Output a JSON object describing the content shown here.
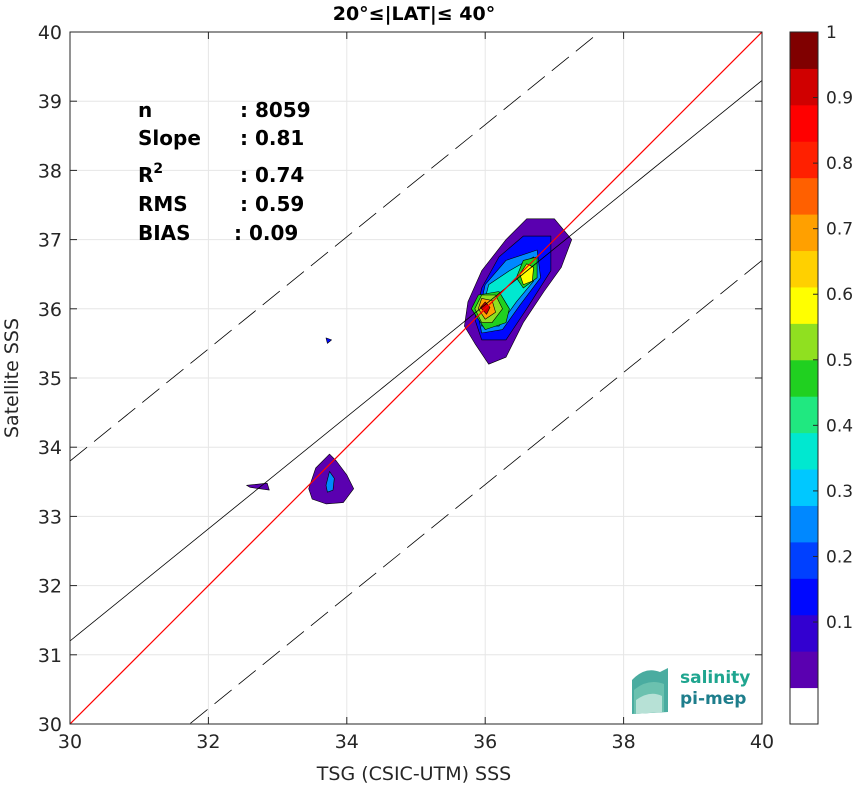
{
  "chart_data": {
    "type": "heatmap",
    "title": "20°≤|LAT|≤ 40°",
    "xlabel": "TSG (CSIC-UTM) SSS",
    "ylabel": "Satellite SSS",
    "xlim": [
      30,
      40
    ],
    "ylim": [
      30,
      40
    ],
    "xticks": [
      "30",
      "32",
      "34",
      "36",
      "38",
      "40"
    ],
    "yticks": [
      "30",
      "31",
      "32",
      "33",
      "34",
      "35",
      "36",
      "37",
      "38",
      "39",
      "40"
    ],
    "grid": true,
    "stats": [
      {
        "label": "n",
        "value": ": 8059"
      },
      {
        "label": "Slope",
        "value": ": 0.81"
      },
      {
        "label": "R",
        "sup": "2",
        "value": ": 0.74"
      },
      {
        "label": "RMS",
        "value": ": 0.59"
      },
      {
        "label": "BIAS",
        "value": ": 0.09"
      }
    ],
    "lines": {
      "identity": {
        "slope": 1.0,
        "intercept": 0.0,
        "color": "#ff0000"
      },
      "fit": {
        "slope": 0.81,
        "intercept": 6.9,
        "color": "#000000"
      },
      "rms_band": {
        "offset": 2.6,
        "style": "dashed",
        "color": "#000000"
      }
    },
    "contour_regions": [
      {
        "name": "main-cluster",
        "level": 0.05,
        "points": [
          [
            35.7,
            35.75
          ],
          [
            35.75,
            36.1
          ],
          [
            35.95,
            36.55
          ],
          [
            36.3,
            37.0
          ],
          [
            36.6,
            37.3
          ],
          [
            37.0,
            37.3
          ],
          [
            37.25,
            37.0
          ],
          [
            37.1,
            36.6
          ],
          [
            36.85,
            36.25
          ],
          [
            36.55,
            35.8
          ],
          [
            36.3,
            35.3
          ],
          [
            36.05,
            35.2
          ],
          [
            35.85,
            35.5
          ]
        ]
      },
      {
        "name": "main-cluster",
        "level": 0.15,
        "points": [
          [
            35.85,
            35.85
          ],
          [
            35.95,
            36.3
          ],
          [
            36.2,
            36.75
          ],
          [
            36.55,
            37.05
          ],
          [
            36.95,
            37.05
          ],
          [
            36.95,
            36.55
          ],
          [
            36.6,
            36.0
          ],
          [
            36.3,
            35.55
          ],
          [
            35.95,
            35.55
          ]
        ]
      },
      {
        "name": "main-cluster",
        "level": 0.25,
        "points": [
          [
            35.9,
            35.9
          ],
          [
            36.0,
            36.35
          ],
          [
            36.3,
            36.7
          ],
          [
            36.75,
            36.85
          ],
          [
            36.8,
            36.45
          ],
          [
            36.5,
            36.05
          ],
          [
            36.25,
            35.7
          ],
          [
            35.95,
            35.65
          ]
        ]
      },
      {
        "name": "main-cluster",
        "level": 0.35,
        "points": [
          [
            35.95,
            35.95
          ],
          [
            36.05,
            36.35
          ],
          [
            36.35,
            36.55
          ],
          [
            36.7,
            36.75
          ],
          [
            36.7,
            36.4
          ],
          [
            36.45,
            36.1
          ],
          [
            36.2,
            35.75
          ],
          [
            35.95,
            35.75
          ]
        ]
      },
      {
        "name": "main-cluster",
        "level": 0.45,
        "points": [
          [
            35.8,
            36.0
          ],
          [
            35.9,
            36.2
          ],
          [
            36.2,
            36.25
          ],
          [
            36.35,
            36.0
          ],
          [
            36.3,
            35.8
          ],
          [
            36.0,
            35.7
          ]
        ]
      },
      {
        "name": "secondary-peak",
        "level": 0.45,
        "points": [
          [
            36.45,
            36.45
          ],
          [
            36.55,
            36.7
          ],
          [
            36.75,
            36.75
          ],
          [
            36.75,
            36.45
          ],
          [
            36.55,
            36.3
          ]
        ]
      },
      {
        "name": "main-cluster",
        "level": 0.55,
        "points": [
          [
            35.85,
            36.0
          ],
          [
            35.95,
            36.2
          ],
          [
            36.15,
            36.2
          ],
          [
            36.25,
            36.0
          ],
          [
            36.1,
            35.8
          ],
          [
            35.95,
            35.8
          ]
        ]
      },
      {
        "name": "secondary-peak",
        "level": 0.6,
        "points": [
          [
            36.5,
            36.5
          ],
          [
            36.6,
            36.65
          ],
          [
            36.7,
            36.6
          ],
          [
            36.68,
            36.4
          ],
          [
            36.55,
            36.35
          ]
        ]
      },
      {
        "name": "main-cluster",
        "level": 0.7,
        "points": [
          [
            35.9,
            36.0
          ],
          [
            35.95,
            36.15
          ],
          [
            36.1,
            36.12
          ],
          [
            36.15,
            35.95
          ],
          [
            36.0,
            35.85
          ]
        ]
      },
      {
        "name": "main-cluster",
        "level": 0.9,
        "points": [
          [
            35.93,
            36.02
          ],
          [
            36.0,
            36.1
          ],
          [
            36.07,
            36.02
          ],
          [
            36.02,
            35.92
          ]
        ]
      },
      {
        "name": "blob-34",
        "level": 0.05,
        "points": [
          [
            33.45,
            33.4
          ],
          [
            33.55,
            33.7
          ],
          [
            33.75,
            33.9
          ],
          [
            33.85,
            33.8
          ],
          [
            34.0,
            33.6
          ],
          [
            34.1,
            33.4
          ],
          [
            33.95,
            33.2
          ],
          [
            33.7,
            33.18
          ],
          [
            33.5,
            33.25
          ]
        ]
      },
      {
        "name": "blob-34",
        "level": 0.25,
        "points": [
          [
            33.7,
            33.45
          ],
          [
            33.75,
            33.65
          ],
          [
            33.82,
            33.55
          ],
          [
            33.8,
            33.38
          ],
          [
            33.72,
            33.35
          ]
        ]
      },
      {
        "name": "speck",
        "level": 0.05,
        "points": [
          [
            32.55,
            33.45
          ],
          [
            32.85,
            33.48
          ],
          [
            32.88,
            33.38
          ],
          [
            32.6,
            33.42
          ]
        ]
      },
      {
        "name": "speck",
        "level": 0.15,
        "points": [
          [
            33.7,
            35.58
          ],
          [
            33.78,
            35.55
          ],
          [
            33.72,
            35.5
          ]
        ]
      }
    ],
    "colorbar": {
      "ticks": [
        "0.1",
        "0.2",
        "0.3",
        "0.4",
        "0.5",
        "0.6",
        "0.7",
        "0.8",
        "0.9",
        "1"
      ],
      "colors": [
        "#ffffff",
        "#5a00b0",
        "#3300d0",
        "#0008ff",
        "#0040ff",
        "#0088ff",
        "#00c8ff",
        "#00e8d0",
        "#20e880",
        "#20d020",
        "#90e020",
        "#ffff00",
        "#ffd000",
        "#ffa000",
        "#ff6000",
        "#ff2000",
        "#ff0000",
        "#d00000",
        "#800000"
      ]
    },
    "logo": {
      "line1": "salinity",
      "line2": "pi-mep"
    }
  }
}
